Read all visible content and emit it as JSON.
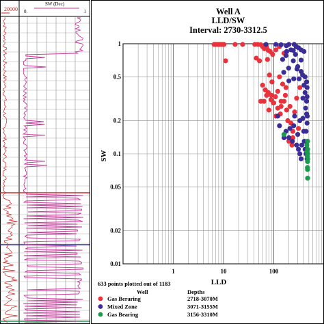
{
  "log_panel": {
    "track1_scale_max": "20000",
    "track2_title": "SW (Dec)",
    "track2_scale_min": "0.",
    "track2_scale_max": "1"
  },
  "chart_data": {
    "type": "scatter",
    "title": "Well A",
    "subtitle_1": "LLD/SW",
    "subtitle_2": "Interval: 2730-3312.5",
    "xlabel": "LLD",
    "ylabel": "SW",
    "x_scale": "log",
    "y_scale": "log",
    "xlim": [
      0.1,
      1000
    ],
    "ylim": [
      0.01,
      1
    ],
    "grid": true,
    "x_ticks": [
      "1",
      "10",
      "100"
    ],
    "y_ticks": [
      "1",
      "0.5",
      "0.2",
      "0.1",
      "0.05",
      "0.02",
      "0.01"
    ],
    "points_note": "633 points plotted out of 1183",
    "legend": {
      "well_header": "Well",
      "depth_header": "Depths",
      "placement": "bottom-left"
    },
    "series": [
      {
        "name": "Gas Beraring",
        "depths": "2718-3070M",
        "color": "#e8323c",
        "points": [
          [
            6.5,
            1
          ],
          [
            7.0,
            1
          ],
          [
            7.5,
            1
          ],
          [
            8.0,
            1
          ],
          [
            8.5,
            1
          ],
          [
            9.0,
            1
          ],
          [
            9.6,
            1
          ],
          [
            10.2,
            1
          ],
          [
            17,
            1
          ],
          [
            24,
            1
          ],
          [
            42,
            1
          ],
          [
            48,
            1
          ],
          [
            55,
            0.98
          ],
          [
            60,
            0.94
          ],
          [
            65,
            0.9
          ],
          [
            72,
            0.93
          ],
          [
            78,
            0.87
          ],
          [
            85,
            0.85
          ],
          [
            95,
            0.8
          ],
          [
            110,
            0.88
          ],
          [
            130,
            0.94
          ],
          [
            160,
            0.82
          ],
          [
            45,
            0.74
          ],
          [
            52,
            0.7
          ],
          [
            75,
            0.72
          ],
          [
            11,
            0.7
          ],
          [
            60,
            0.42
          ],
          [
            68,
            0.38
          ],
          [
            72,
            0.34
          ],
          [
            64,
            0.3
          ],
          [
            90,
            0.34
          ],
          [
            98,
            0.29
          ],
          [
            108,
            0.33
          ],
          [
            120,
            0.37
          ],
          [
            80,
            0.25
          ],
          [
            110,
            0.22
          ],
          [
            150,
            0.43
          ],
          [
            175,
            0.4
          ],
          [
            210,
            0.27
          ],
          [
            82,
            0.52
          ],
          [
            130,
            0.5
          ],
          [
            160,
            0.3
          ],
          [
            190,
            0.2
          ],
          [
            220,
            0.19
          ],
          [
            240,
            0.16
          ],
          [
            120,
            0.26
          ],
          [
            55,
            0.3
          ],
          [
            135,
            0.23
          ],
          [
            180,
            0.25
          ],
          [
            310,
            0.17
          ],
          [
            285,
            0.32
          ],
          [
            330,
            0.4
          ],
          [
            100,
            0.29
          ],
          [
            92,
            0.45
          ],
          [
            88,
            0.31
          ],
          [
            260,
            0.24
          ],
          [
            140,
            0.27
          ],
          [
            78,
            0.36
          ],
          [
            200,
            0.13
          ],
          [
            230,
            0.12
          ],
          [
            240,
            0.14
          ],
          [
            140,
            0.3
          ],
          [
            170,
            0.34
          ]
        ]
      },
      {
        "name": "Mixed Zone",
        "depths": "3071-3155M",
        "color": "#3a2e96",
        "points": [
          [
            70,
            1
          ],
          [
            110,
            1
          ],
          [
            140,
            0.98
          ],
          [
            178,
            0.96
          ],
          [
            200,
            1
          ],
          [
            255,
            1
          ],
          [
            280,
            0.94
          ],
          [
            310,
            0.92
          ],
          [
            350,
            0.88
          ],
          [
            400,
            0.85
          ],
          [
            270,
            0.8
          ],
          [
            180,
            0.85
          ],
          [
            150,
            0.72
          ],
          [
            245,
            0.7
          ],
          [
            300,
            0.62
          ],
          [
            350,
            0.56
          ],
          [
            375,
            0.52
          ],
          [
            420,
            0.5
          ],
          [
            198,
            0.6
          ],
          [
            158,
            0.55
          ],
          [
            320,
            0.48
          ],
          [
            450,
            0.45
          ],
          [
            400,
            0.42
          ],
          [
            460,
            0.4
          ],
          [
            420,
            0.36
          ],
          [
            380,
            0.32
          ],
          [
            250,
            0.48
          ],
          [
            200,
            0.46
          ],
          [
            460,
            0.33
          ],
          [
            120,
            0.22
          ],
          [
            130,
            0.18
          ],
          [
            160,
            0.14
          ],
          [
            175,
            0.16
          ],
          [
            200,
            0.14
          ],
          [
            210,
            0.17
          ],
          [
            250,
            0.18
          ],
          [
            235,
            0.13
          ],
          [
            285,
            0.12
          ],
          [
            310,
            0.11
          ],
          [
            330,
            0.1
          ],
          [
            350,
            0.09
          ],
          [
            360,
            0.12
          ],
          [
            405,
            0.13
          ],
          [
            440,
            0.16
          ],
          [
            460,
            0.19
          ],
          [
            450,
            0.23
          ],
          [
            430,
            0.26
          ],
          [
            380,
            0.21
          ],
          [
            330,
            0.2
          ],
          [
            395,
            0.16
          ],
          [
            420,
            0.11
          ],
          [
            440,
            0.1
          ],
          [
            460,
            0.09
          ],
          [
            465,
            0.22
          ],
          [
            300,
            0.15
          ],
          [
            260,
            0.22
          ],
          [
            450,
            0.3
          ],
          [
            245,
            0.87
          ],
          [
            350,
            0.71
          ],
          [
            290,
            0.59
          ],
          [
            220,
            0.88
          ],
          [
            175,
            0.78
          ]
        ]
      },
      {
        "name": "Gas Bearing",
        "depths": "3156-3310M",
        "color": "#1a9a4a",
        "points": [
          [
            160,
            0.15
          ],
          [
            455,
            0.12
          ],
          [
            462,
            0.105
          ],
          [
            465,
            0.095
          ],
          [
            470,
            0.085
          ],
          [
            473,
            0.11
          ],
          [
            468,
            0.075
          ],
          [
            471,
            0.13
          ],
          [
            474,
            0.1
          ],
          [
            472,
            0.06
          ],
          [
            475,
            0.09
          ],
          [
            470,
            0.072
          ]
        ]
      }
    ]
  }
}
